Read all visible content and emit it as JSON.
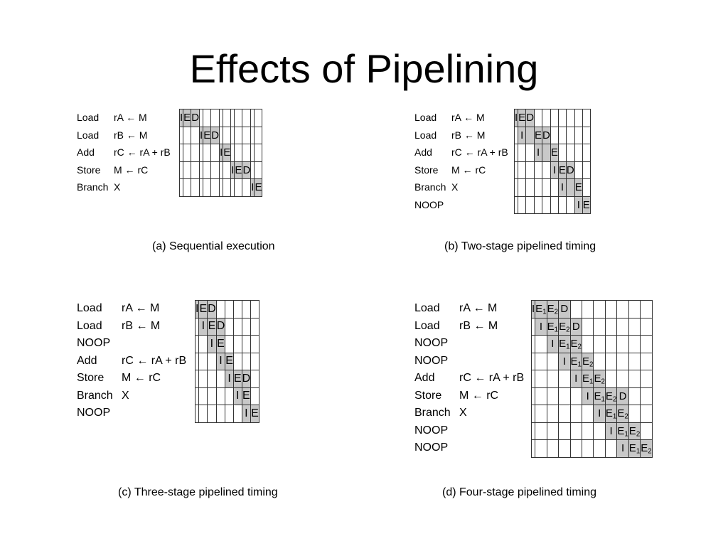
{
  "slide": {
    "title": "Effects of Pipelining"
  },
  "diagrams": {
    "a": {
      "caption": "(a) Sequential execution",
      "rows": [
        {
          "op": "Load",
          "args": "rA ← M",
          "cells": {
            "0": "I",
            "1": "E",
            "2": "D"
          }
        },
        {
          "op": "Load",
          "args": "rB ← M",
          "cells": {
            "3": "I",
            "4": "E",
            "5": "D"
          }
        },
        {
          "op": "Add",
          "args": "rC ← rA + rB",
          "cells": {
            "6": "I",
            "7": "E"
          }
        },
        {
          "op": "Store",
          "args": "M ← rC",
          "cells": {
            "8": "I",
            "9": "E",
            "10": "D"
          }
        },
        {
          "op": "Branch",
          "args": "X",
          "cells": {
            "11": "I",
            "12": "E"
          }
        }
      ]
    },
    "b": {
      "caption": "(b) Two-stage pipelined timing",
      "rows": [
        {
          "op": "Load",
          "args": "rA ← M",
          "cells": {
            "0": "I",
            "1": "E",
            "2": "D"
          }
        },
        {
          "op": "Load",
          "args": "rB ← M",
          "cells": {
            "1": "I",
            "2": "",
            "3": "E",
            "4": "D"
          }
        },
        {
          "op": "Add",
          "args": "rC ← rA + rB",
          "cells": {
            "3": "I",
            "4": "",
            "5": "E"
          }
        },
        {
          "op": "Store",
          "args": "M ← rC",
          "cells": {
            "5": "I",
            "6": "E",
            "7": "D"
          }
        },
        {
          "op": "Branch",
          "args": "X",
          "cells": {
            "6": "I",
            "7": "",
            "8": "E"
          }
        },
        {
          "op": "NOOP",
          "args": "",
          "cells": {
            "8": "I",
            "9": "E"
          }
        }
      ]
    },
    "c": {
      "caption": "(c) Three-stage pipelined timing",
      "rows": [
        {
          "op": "Load",
          "args": "rA ← M",
          "cells": {
            "0": "I",
            "1": "E",
            "2": "D"
          }
        },
        {
          "op": "Load",
          "args": "rB ← M",
          "cells": {
            "1": "I",
            "2": "E",
            "3": "D"
          }
        },
        {
          "op": "NOOP",
          "args": "",
          "cells": {
            "2": "I",
            "3": "E"
          }
        },
        {
          "op": "Add",
          "args": "rC ← rA + rB",
          "cells": {
            "3": "I",
            "4": "E"
          }
        },
        {
          "op": "Store",
          "args": "M ← rC",
          "cells": {
            "4": "I",
            "5": "E",
            "6": "D"
          }
        },
        {
          "op": "Branch",
          "args": "X",
          "cells": {
            "5": "I",
            "6": "E"
          }
        },
        {
          "op": "NOOP",
          "args": "",
          "cells": {
            "6": "I",
            "7": "E"
          }
        }
      ]
    },
    "d": {
      "caption": "(d) Four-stage pipelined timing",
      "rows": [
        {
          "op": "Load",
          "args": "rA ← M",
          "cells": {
            "0": "I",
            "1": "E1",
            "2": "E2",
            "3": "D"
          }
        },
        {
          "op": "Load",
          "args": "rB ← M",
          "cells": {
            "1": "I",
            "2": "E1",
            "3": "E2",
            "4": "D"
          }
        },
        {
          "op": "NOOP",
          "args": "",
          "cells": {
            "2": "I",
            "3": "E1",
            "4": "E2"
          }
        },
        {
          "op": "NOOP",
          "args": "",
          "cells": {
            "3": "I",
            "4": "E1",
            "5": "E2"
          }
        },
        {
          "op": "Add",
          "args": "rC ← rA + rB",
          "cells": {
            "4": "I",
            "5": "E1",
            "6": "E2"
          }
        },
        {
          "op": "Store",
          "args": "M ← rC",
          "cells": {
            "5": "I",
            "6": "E1",
            "7": "E2",
            "8": "D"
          }
        },
        {
          "op": "Branch",
          "args": "X",
          "cells": {
            "6": "I",
            "7": "E1",
            "8": "E2"
          }
        },
        {
          "op": "NOOP",
          "args": "",
          "cells": {
            "7": "I",
            "8": "E1",
            "9": "E2"
          }
        },
        {
          "op": "NOOP",
          "args": "",
          "cells": {
            "8": "I",
            "9": "E1",
            "10": "E2"
          }
        }
      ]
    }
  },
  "colors": {
    "stage_fill": "#c8c8c8",
    "grid_line": "#333333"
  }
}
